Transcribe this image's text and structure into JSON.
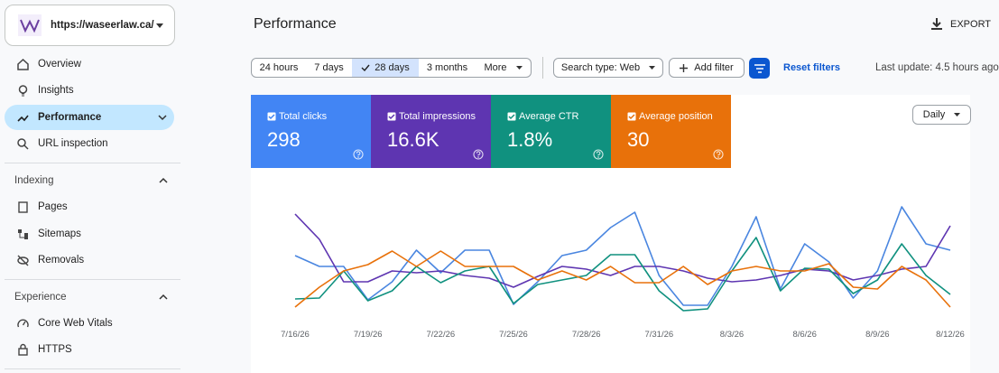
{
  "sidebar": {
    "site": "https://waseerlaw.ca/",
    "nav": [
      "Overview",
      "Insights",
      "Performance",
      "URL inspection"
    ],
    "sections": [
      {
        "title": "Indexing",
        "items": [
          "Pages",
          "Sitemaps",
          "Removals"
        ]
      },
      {
        "title": "Experience",
        "items": [
          "Core Web Vitals",
          "HTTPS"
        ]
      }
    ]
  },
  "header": {
    "title": "Performance",
    "export": "EXPORT"
  },
  "toolbar": {
    "ranges": [
      "24 hours",
      "7 days",
      "28 days",
      "3 months",
      "More"
    ],
    "search_type": "Search type: Web",
    "add_filter": "Add filter",
    "reset_filters": "Reset filters",
    "last_update": "Last update: 4.5 hours ago"
  },
  "cards": [
    {
      "label": "Total clicks",
      "value": "298"
    },
    {
      "label": "Total impressions",
      "value": "16.6K"
    },
    {
      "label": "Average CTR",
      "value": "1.8%"
    },
    {
      "label": "Average position",
      "value": "30"
    }
  ],
  "granularity": "Daily",
  "chart_data": {
    "type": "line",
    "categories": [
      "7/16/26",
      null,
      null,
      "7/19/26",
      null,
      null,
      "7/22/26",
      null,
      null,
      "7/25/26",
      null,
      null,
      "7/28/26",
      null,
      null,
      "7/31/26",
      null,
      null,
      "8/3/26",
      null,
      null,
      "8/6/26",
      null,
      null,
      "8/9/26",
      null,
      null,
      "8/12/26"
    ],
    "ylim": [
      0,
      140
    ],
    "series": [
      {
        "name": "Total clicks",
        "color": "#4a86e0",
        "values": [
          77,
          65,
          65,
          28,
          48,
          83,
          58,
          83,
          83,
          23,
          48,
          77,
          83,
          108,
          125,
          55,
          22,
          22,
          65,
          120,
          40,
          90,
          70,
          30,
          60,
          131,
          90,
          83
        ]
      },
      {
        "name": "Total impressions",
        "color": "#5e35b1",
        "values": [
          123,
          95,
          48,
          48,
          60,
          58,
          60,
          55,
          52,
          42,
          54,
          65,
          62,
          55,
          65,
          65,
          60,
          52,
          48,
          50,
          55,
          62,
          60,
          50,
          55,
          62,
          65,
          110
        ]
      },
      {
        "name": "Average CTR",
        "color": "#10917f",
        "values": [
          29,
          30,
          60,
          27,
          38,
          65,
          47,
          60,
          65,
          24,
          45,
          50,
          55,
          78,
          78,
          38,
          16,
          18,
          60,
          97,
          38,
          63,
          62,
          35,
          50,
          90,
          55,
          34
        ]
      },
      {
        "name": "Average position",
        "color": "#e8710a",
        "values": [
          20,
          42,
          60,
          67,
          82,
          65,
          82,
          65,
          65,
          65,
          50,
          60,
          50,
          65,
          47,
          47,
          65,
          45,
          60,
          65,
          60,
          60,
          68,
          42,
          40,
          65,
          50,
          20
        ]
      }
    ]
  }
}
